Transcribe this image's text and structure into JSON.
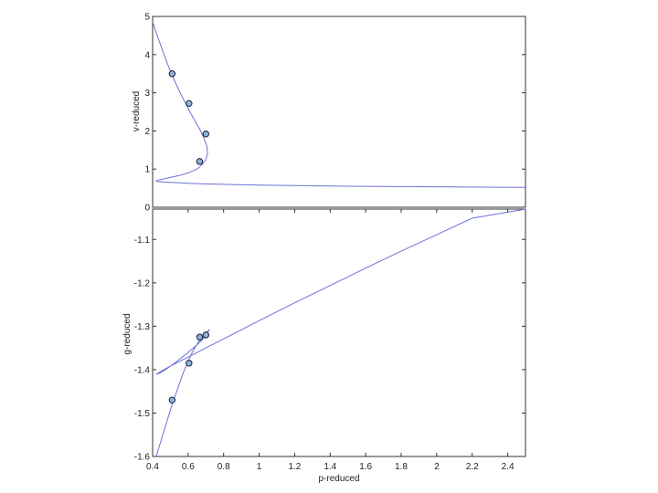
{
  "chart_data": [
    {
      "type": "line",
      "ylabel": "v-reduced",
      "xlim": [
        0.4,
        2.5
      ],
      "ylim": [
        0,
        5
      ],
      "yticks": [
        "0",
        "1",
        "2",
        "3",
        "4",
        "5"
      ],
      "grid": false,
      "series": [
        {
          "color": "#6b72d6",
          "x": [
            0.4,
            0.43,
            0.46,
            0.49,
            0.52,
            0.55,
            0.58,
            0.61,
            0.64,
            0.67,
            0.69,
            0.705,
            0.71,
            0.7,
            0.68,
            0.65,
            0.6,
            0.55,
            0.5,
            0.46,
            0.43,
            0.42,
            0.43,
            0.46,
            0.5,
            0.55,
            0.6,
            0.7,
            0.8,
            1.0,
            1.2,
            1.5,
            1.8,
            2.1,
            2.5
          ],
          "y": [
            4.85,
            4.45,
            4.05,
            3.68,
            3.35,
            3.05,
            2.77,
            2.5,
            2.25,
            2.0,
            1.8,
            1.6,
            1.42,
            1.25,
            1.12,
            1.0,
            0.9,
            0.83,
            0.78,
            0.74,
            0.71,
            0.69,
            0.67,
            0.66,
            0.65,
            0.64,
            0.63,
            0.61,
            0.6,
            0.58,
            0.57,
            0.55,
            0.54,
            0.53,
            0.52
          ]
        }
      ],
      "markers": {
        "color": "#8cb4d8",
        "x": [
          0.51,
          0.605,
          0.7,
          0.665
        ],
        "y": [
          3.5,
          2.72,
          1.92,
          1.2
        ]
      }
    },
    {
      "type": "line",
      "xlabel": "p-reduced",
      "ylabel": "g-reduced",
      "xlim": [
        0.4,
        2.5
      ],
      "ylim": [
        -1.6,
        -1.03
      ],
      "xticks": [
        "0.4",
        "0.6",
        "0.8",
        "1",
        "1.2",
        "1.4",
        "1.6",
        "1.8",
        "2",
        "2.2",
        "2.4"
      ],
      "yticks": [
        "-1.6",
        "-1.5",
        "-1.4",
        "-1.3",
        "-1.2",
        "-1.1"
      ],
      "grid": false,
      "series": [
        {
          "color": "#6b72d6",
          "x": [
            0.42,
            0.45,
            0.48,
            0.51,
            0.54,
            0.57,
            0.6,
            0.63,
            0.66,
            0.68,
            0.7,
            0.72,
            0.7,
            0.67,
            0.63,
            0.58,
            0.53,
            0.48,
            0.44,
            0.42,
            0.45,
            0.5,
            0.6,
            0.7,
            0.8,
            1.0,
            1.2,
            1.4,
            1.6,
            1.8,
            2.0,
            2.2,
            2.5
          ],
          "y": [
            -1.6,
            -1.56,
            -1.52,
            -1.48,
            -1.445,
            -1.41,
            -1.38,
            -1.355,
            -1.335,
            -1.325,
            -1.317,
            -1.307,
            -1.322,
            -1.335,
            -1.35,
            -1.367,
            -1.383,
            -1.398,
            -1.408,
            -1.411,
            -1.403,
            -1.392,
            -1.371,
            -1.35,
            -1.329,
            -1.287,
            -1.246,
            -1.206,
            -1.166,
            -1.127,
            -1.089,
            -1.051,
            -1.03
          ]
        }
      ],
      "markers": {
        "color": "#8cb4d8",
        "x": [
          0.51,
          0.605,
          0.665,
          0.7
        ],
        "y": [
          -1.47,
          -1.385,
          -1.325,
          -1.32
        ]
      }
    }
  ]
}
